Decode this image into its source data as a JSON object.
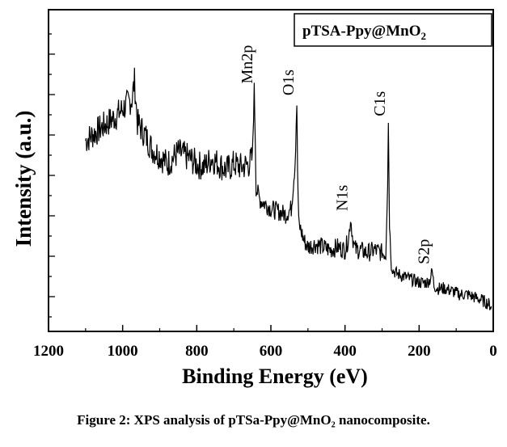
{
  "chart_data": {
    "type": "line",
    "title": "",
    "xlabel": "Binding Energy (eV)",
    "ylabel": "Intensity (a.u.)",
    "xlim": [
      1200,
      0
    ],
    "x_reversed": true,
    "ylim": [
      0,
      100
    ],
    "x_ticks": [
      1200,
      1000,
      800,
      600,
      400,
      200,
      0
    ],
    "y_ticks_labeled": false,
    "legend": {
      "text_main": "pTSA-Ppy@MnO",
      "text_sub": "2",
      "placement": "top-right"
    },
    "series": [
      {
        "name": "pTSA-Ppy@MnO2",
        "x": [
          1100,
          1060,
          1020,
          990,
          975,
          968,
          960,
          940,
          920,
          900,
          880,
          850,
          820,
          800,
          780,
          760,
          740,
          720,
          700,
          680,
          660,
          650,
          645,
          642,
          640,
          635,
          630,
          620,
          600,
          580,
          560,
          545,
          535,
          530,
          528,
          525,
          520,
          510,
          500,
          480,
          460,
          440,
          420,
          400,
          390,
          385,
          380,
          375,
          370,
          360,
          340,
          320,
          300,
          290,
          285,
          283,
          280,
          275,
          270,
          260,
          240,
          220,
          200,
          180,
          170,
          165,
          160,
          150,
          130,
          110,
          90,
          70,
          50,
          30,
          15,
          5
        ],
        "y": [
          58,
          62,
          66,
          70,
          72,
          78,
          64,
          60,
          55,
          53,
          50,
          54,
          52,
          50,
          49,
          52,
          50,
          48,
          50,
          49,
          50,
          52,
          75,
          58,
          42,
          40,
          38,
          37,
          35,
          34,
          33,
          35,
          50,
          71,
          48,
          30,
          28,
          24,
          22,
          23,
          22,
          21,
          22,
          21,
          25,
          32,
          26,
          22,
          21,
          21,
          20,
          21,
          20,
          19,
          44,
          64,
          30,
          16,
          14,
          13,
          12,
          11,
          10,
          10,
          11,
          14,
          9,
          8,
          8,
          7,
          6,
          6,
          5,
          4,
          3,
          2
        ]
      }
    ],
    "annotations": [
      {
        "text": "Mn2p",
        "x": 642,
        "y": 75
      },
      {
        "text": "O1s",
        "x": 530,
        "y": 71
      },
      {
        "text": "N1s",
        "x": 385,
        "y": 32
      },
      {
        "text": "C1s",
        "x": 284,
        "y": 64
      },
      {
        "text": "S2p",
        "x": 165,
        "y": 14
      }
    ]
  },
  "caption": "Figure 2: XPS analysis of pTSa-Ppy@MnO₂ nanocomposite."
}
